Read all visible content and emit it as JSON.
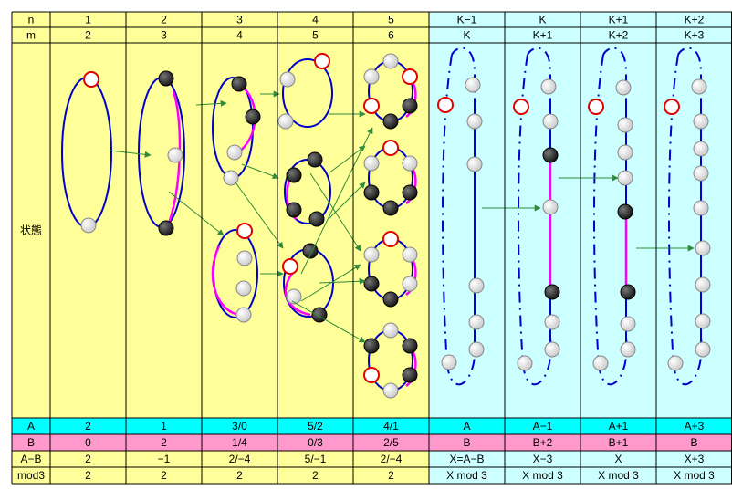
{
  "table": {
    "rows": [
      [
        "n",
        "1",
        "2",
        "3",
        "4",
        "5",
        "K−1",
        "K",
        "K+1",
        "K+2"
      ],
      [
        "m",
        "2",
        "3",
        "4",
        "5",
        "6",
        "K",
        "K+1",
        "K+2",
        "K+3"
      ],
      [
        "状態"
      ],
      [
        "A",
        "2",
        "1",
        "3/0",
        "5/2",
        "4/1",
        "A",
        "A−1",
        "A+1",
        "A+3"
      ],
      [
        "B",
        "0",
        "2",
        "1/4",
        "0/3",
        "2/5",
        "B",
        "B+2",
        "B+1",
        "B"
      ],
      [
        "A−B",
        "2",
        "−1",
        "2/−4",
        "5/−1",
        "2/−4",
        "X=A−B",
        "X−3",
        "X",
        "X+3"
      ],
      [
        "mod3",
        "2",
        "2",
        "2",
        "2",
        "2",
        "X mod 3",
        "X mod 3",
        "X mod 3",
        "X mod 3"
      ]
    ]
  }
}
